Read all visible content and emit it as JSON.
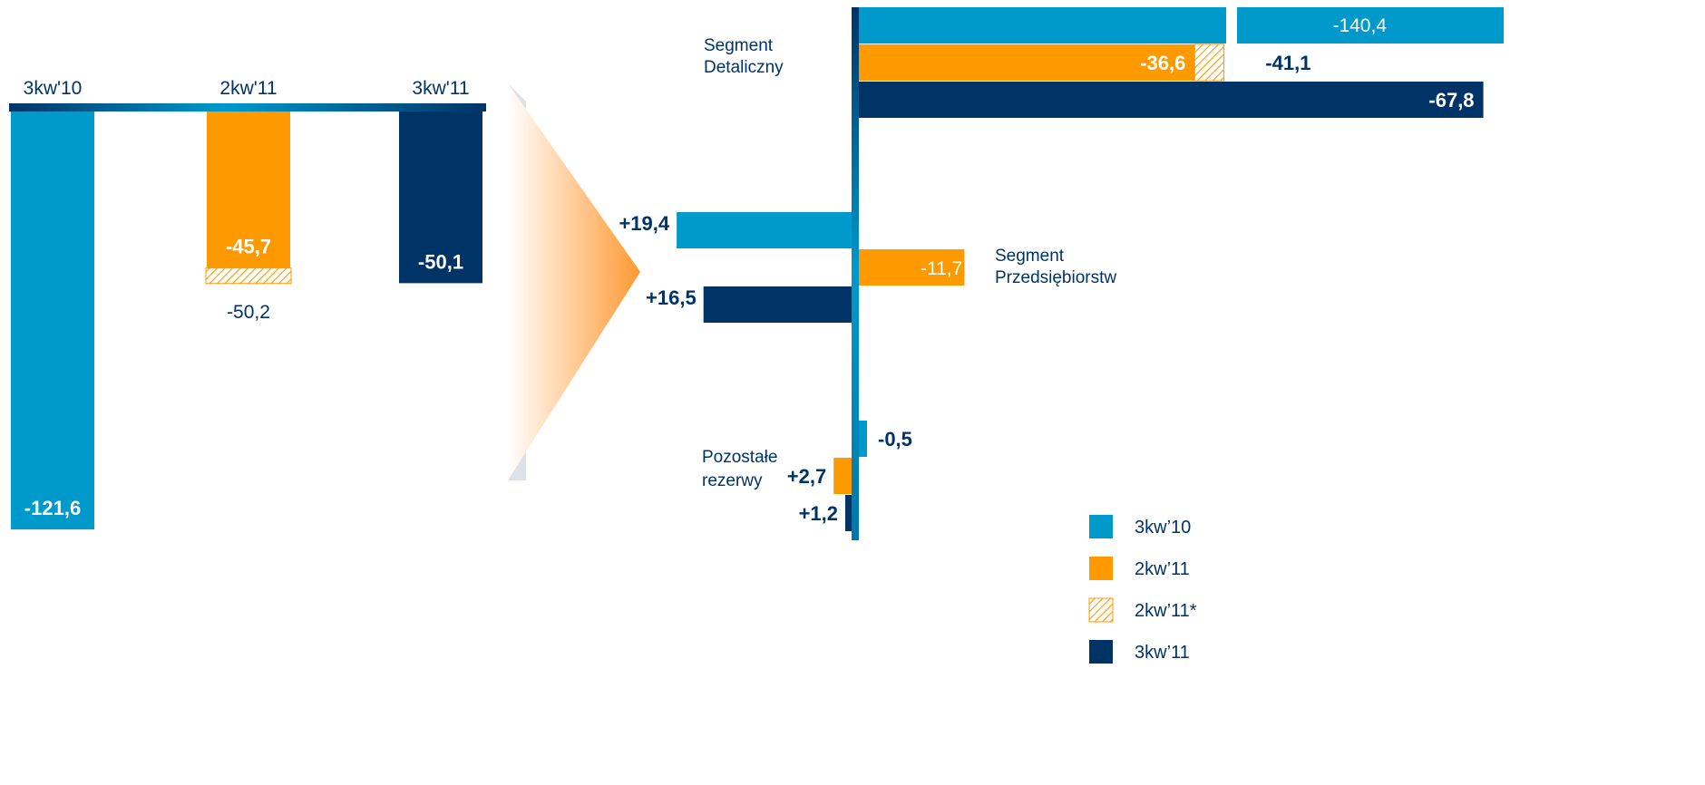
{
  "colors": {
    "q3_10": "#0099cc",
    "q2_11": "#ff9900",
    "q3_11": "#003366",
    "hatch": "#ff9900"
  },
  "chart_data": [
    {
      "type": "bar",
      "categories": [
        "3kw'10",
        "2kw'11",
        "3kw'11"
      ],
      "values": [
        -121.6,
        -45.7,
        -50.1
      ],
      "value_labels": [
        "-121,6",
        "-45,7",
        "-50,1"
      ],
      "adjusted": {
        "category": "2kw'11",
        "value": -50.2,
        "label": "-50,2"
      }
    },
    {
      "type": "bar",
      "orientation": "horizontal",
      "groups": [
        {
          "name": "Segment Detaliczny",
          "label_lines": [
            "Segment",
            "Detaliczny"
          ],
          "bars": [
            {
              "series": "3kw’10",
              "value": -140.4,
              "label": "-140,4",
              "broken_axis": true
            },
            {
              "series": "2kw’11",
              "value": -36.6,
              "label": "-36,6",
              "adjusted_value": -41.1,
              "adjusted_label": "-41,1"
            },
            {
              "series": "3kw’11",
              "value": -67.8,
              "label": "-67,8"
            }
          ]
        },
        {
          "name": "Segment Przedsiębiorstw",
          "label_lines": [
            "Segment",
            "Przedsiębiorstw"
          ],
          "bars": [
            {
              "series": "3kw’10",
              "value": 19.4,
              "label": "+19,4"
            },
            {
              "series": "2kw’11",
              "value": -11.7,
              "label": "-11,7"
            },
            {
              "series": "3kw’11",
              "value": 16.5,
              "label": "+16,5"
            }
          ]
        },
        {
          "name": "Pozostałe rezerwy",
          "label_lines": [
            "Pozostałe",
            "rezerwy"
          ],
          "bars": [
            {
              "series": "3kw’10",
              "value": -0.5,
              "label": "-0,5"
            },
            {
              "series": "2kw’11",
              "value": 2.7,
              "label": "+2,7"
            },
            {
              "series": "3kw’11",
              "value": 1.2,
              "label": "+1,2"
            }
          ]
        }
      ],
      "legend": {
        "placement": "bottom-right",
        "items": [
          {
            "label": "3kw’10",
            "style": "solid",
            "color_key": "q3_10"
          },
          {
            "label": "2kw’11",
            "style": "solid",
            "color_key": "q2_11"
          },
          {
            "label": "2kw’11*",
            "style": "hatched",
            "color_key": "hatch"
          },
          {
            "label": "3kw’11",
            "style": "solid",
            "color_key": "q3_11"
          }
        ]
      }
    }
  ]
}
